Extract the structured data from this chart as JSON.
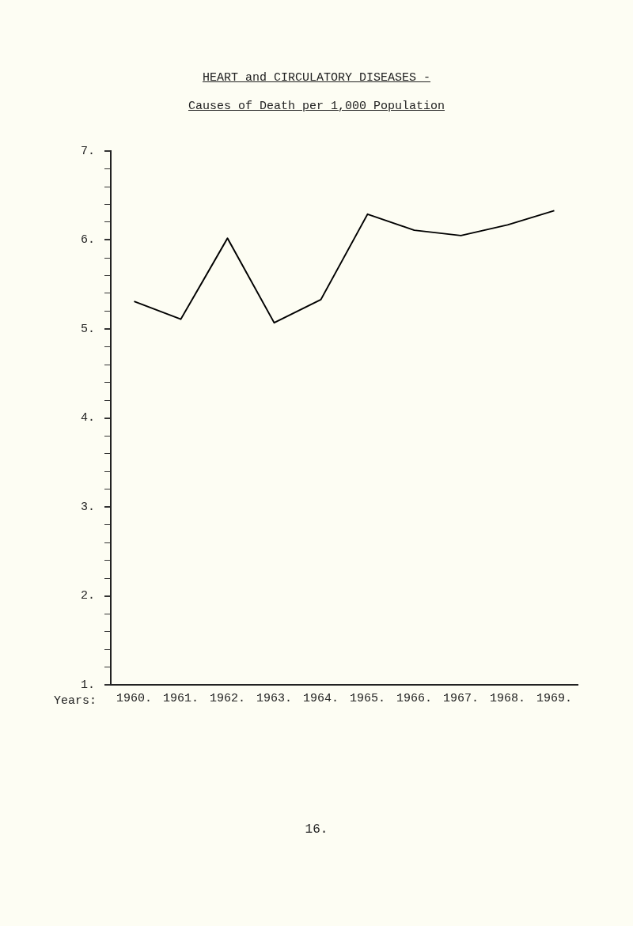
{
  "chart_data": {
    "type": "line",
    "title": "HEART and CIRCULATORY DISEASES -",
    "subtitle": "Causes of Death per 1,000 Population",
    "xlabel": "Years:",
    "categories": [
      "1960.",
      "1961.",
      "1962.",
      "1963.",
      "1964.",
      "1965.",
      "1966.",
      "1967.",
      "1968.",
      "1969."
    ],
    "series": [
      {
        "color": "#000000",
        "values": [
          5.31,
          5.11,
          6.02,
          5.07,
          5.33,
          6.29,
          6.11,
          6.05,
          6.17,
          6.33
        ]
      }
    ],
    "ylim": [
      1,
      7
    ],
    "yticks": [
      {
        "value": 1,
        "label": "1."
      },
      {
        "value": 1.2,
        "label": null
      },
      {
        "value": 1.4,
        "label": null
      },
      {
        "value": 1.6,
        "label": null
      },
      {
        "value": 1.8,
        "label": null
      },
      {
        "value": 2,
        "label": "2."
      },
      {
        "value": 2.2,
        "label": null
      },
      {
        "value": 2.4,
        "label": null
      },
      {
        "value": 2.6,
        "label": null
      },
      {
        "value": 2.8,
        "label": null
      },
      {
        "value": 3,
        "label": "3."
      },
      {
        "value": 3.2,
        "label": null
      },
      {
        "value": 3.4,
        "label": null
      },
      {
        "value": 3.6,
        "label": null
      },
      {
        "value": 3.8,
        "label": null
      },
      {
        "value": 4,
        "label": "4."
      },
      {
        "value": 4.2,
        "label": null
      },
      {
        "value": 4.4,
        "label": null
      },
      {
        "value": 4.6,
        "label": null
      },
      {
        "value": 4.8,
        "label": null
      },
      {
        "value": 5,
        "label": "5."
      },
      {
        "value": 5.2,
        "label": null
      },
      {
        "value": 5.4,
        "label": null
      },
      {
        "value": 5.6,
        "label": null
      },
      {
        "value": 5.8,
        "label": null
      },
      {
        "value": 6,
        "label": "6."
      },
      {
        "value": 6.2,
        "label": null
      },
      {
        "value": 6.4,
        "label": null
      },
      {
        "value": 6.6,
        "label": null
      },
      {
        "value": 6.8,
        "label": null
      },
      {
        "value": 7,
        "label": "7."
      }
    ],
    "grid": false,
    "legend": false,
    "marker": "none",
    "line_style": "solid",
    "annotations": [
      "16."
    ]
  }
}
